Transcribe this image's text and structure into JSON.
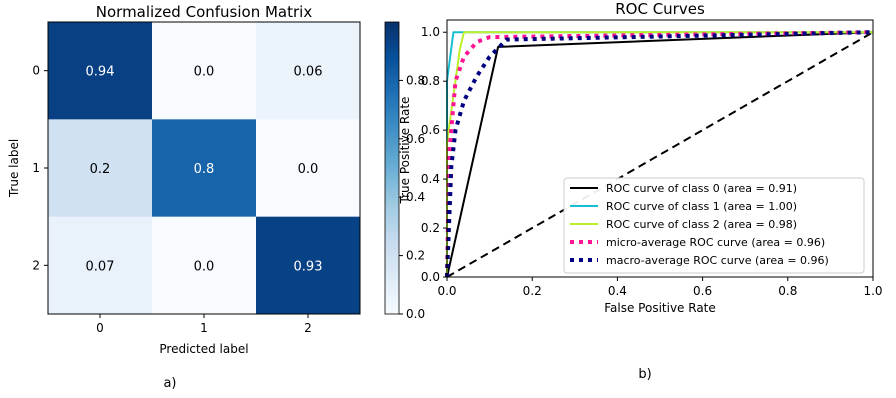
{
  "chart_data": [
    {
      "type": "heatmap",
      "title": "Normalized Confusion Matrix",
      "xlabel": "Predicted label",
      "ylabel": "True label",
      "x_categories": [
        "0",
        "1",
        "2"
      ],
      "y_categories": [
        "0",
        "1",
        "2"
      ],
      "values": [
        [
          0.94,
          0.0,
          0.06
        ],
        [
          0.2,
          0.8,
          0.0
        ],
        [
          0.07,
          0.0,
          0.93
        ]
      ],
      "value_labels": [
        [
          "0.94",
          "0.0",
          "0.06"
        ],
        [
          "0.2",
          "0.8",
          "0.0"
        ],
        [
          "0.07",
          "0.0",
          "0.93"
        ]
      ],
      "colormap": "Blues",
      "colorbar": {
        "range": [
          0,
          1
        ],
        "ticks": [
          "0.0",
          "0.2",
          "0.4",
          "0.6",
          "0.8"
        ]
      },
      "caption": "a)"
    },
    {
      "type": "line",
      "title": "ROC Curves",
      "xlabel": "False Positive Rate",
      "ylabel": "True Positive Rate",
      "xlim": [
        0,
        1
      ],
      "ylim": [
        0,
        1.05
      ],
      "xticks": [
        "0.0",
        "0.2",
        "0.4",
        "0.6",
        "0.8",
        "1.0"
      ],
      "yticks": [
        "0.0",
        "0.2",
        "0.4",
        "0.6",
        "0.8",
        "1.0"
      ],
      "grid": false,
      "legend_position": "lower-right",
      "series": [
        {
          "name": "ROC curve of class 0 (area = 0.91)",
          "color": "#000000",
          "style": "solid",
          "x": [
            0.0,
            0.12,
            1.0
          ],
          "y": [
            0.0,
            0.94,
            1.0
          ]
        },
        {
          "name": "ROC curve of class 1 (area = 1.00)",
          "color": "#17becf",
          "style": "solid",
          "x": [
            0.0,
            0.0,
            0.015,
            1.0
          ],
          "y": [
            0.0,
            0.8,
            1.0,
            1.0
          ]
        },
        {
          "name": "ROC curve of class 2 (area = 0.98)",
          "color": "#bcf02a",
          "style": "solid",
          "x": [
            0.0,
            0.0,
            0.03,
            0.04,
            1.0
          ],
          "y": [
            0.0,
            0.55,
            0.93,
            1.0,
            1.0
          ]
        },
        {
          "name": "micro-average ROC curve (area = 0.96)",
          "color": "#ff1493",
          "style": "dotted",
          "x": [
            0.0,
            0.005,
            0.02,
            0.04,
            0.07,
            0.1,
            1.0
          ],
          "y": [
            0.0,
            0.5,
            0.8,
            0.9,
            0.96,
            0.98,
            1.0
          ]
        },
        {
          "name": "macro-average ROC curve (area = 0.96)",
          "color": "#000080",
          "style": "dotted",
          "x": [
            0.0,
            0.01,
            0.02,
            0.04,
            0.07,
            0.1,
            0.14,
            1.0
          ],
          "y": [
            0.0,
            0.45,
            0.6,
            0.72,
            0.82,
            0.9,
            0.97,
            1.0
          ]
        },
        {
          "name": "",
          "color": "#000000",
          "style": "dashed",
          "x": [
            0.0,
            1.0
          ],
          "y": [
            0.0,
            1.0
          ]
        }
      ],
      "caption": "b)"
    }
  ]
}
